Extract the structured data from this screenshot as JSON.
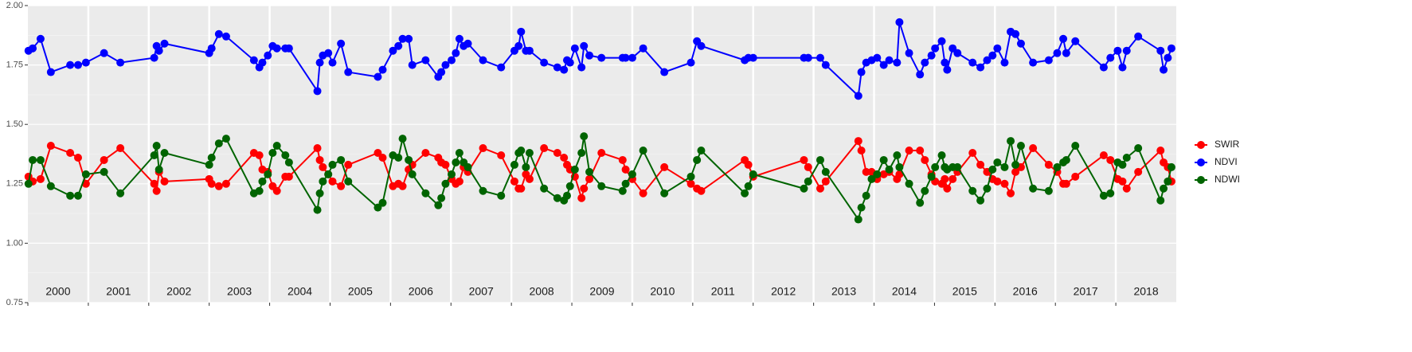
{
  "chart_data": {
    "type": "line",
    "x": [
      2000.01,
      2000.08,
      2000.21,
      2000.38,
      2000.7,
      2000.83,
      2000.96,
      2001.26,
      2001.53,
      2002.09,
      2002.13,
      2002.17,
      2002.26,
      2003.0,
      2003.04,
      2003.16,
      2003.28,
      2003.74,
      2003.83,
      2003.88,
      2003.97,
      2004.05,
      2004.12,
      2004.26,
      2004.32,
      2004.79,
      2004.83,
      2004.88,
      2004.97,
      2005.04,
      2005.18,
      2005.3,
      2005.79,
      2005.87,
      2006.04,
      2006.13,
      2006.2,
      2006.3,
      2006.36,
      2006.58,
      2006.79,
      2006.84,
      2006.91,
      2007.01,
      2007.08,
      2007.14,
      2007.21,
      2007.28,
      2007.53,
      2007.83,
      2008.05,
      2008.12,
      2008.16,
      2008.24,
      2008.3,
      2008.54,
      2008.76,
      2008.87,
      2008.92,
      2008.97,
      2009.05,
      2009.16,
      2009.2,
      2009.29,
      2009.49,
      2009.84,
      2009.89,
      2010.0,
      2010.18,
      2010.53,
      2010.97,
      2011.07,
      2011.14,
      2011.86,
      2011.92,
      2012.0,
      2012.84,
      2012.91,
      2013.11,
      2013.2,
      2013.74,
      2013.79,
      2013.87,
      2013.96,
      2014.05,
      2014.16,
      2014.25,
      2014.38,
      2014.42,
      2014.58,
      2014.76,
      2014.84,
      2014.95,
      2015.01,
      2015.12,
      2015.17,
      2015.21,
      2015.3,
      2015.38,
      2015.63,
      2015.76,
      2015.87,
      2015.96,
      2016.04,
      2016.16,
      2016.26,
      2016.34,
      2016.43,
      2016.63,
      2016.89,
      2017.03,
      2017.13,
      2017.18,
      2017.33,
      2017.8,
      2017.91,
      2018.03,
      2018.11,
      2018.18,
      2018.37,
      2018.74,
      2018.79,
      2018.86,
      2018.92
    ],
    "series": [
      {
        "name": "SWIR",
        "color": "#ff0000",
        "values": [
          1.28,
          1.26,
          1.27,
          1.41,
          1.38,
          1.36,
          1.25,
          1.35,
          1.4,
          1.25,
          1.22,
          1.3,
          1.26,
          1.27,
          1.25,
          1.24,
          1.25,
          1.38,
          1.37,
          1.31,
          1.3,
          1.24,
          1.22,
          1.28,
          1.28,
          1.4,
          1.35,
          1.32,
          1.29,
          1.26,
          1.24,
          1.33,
          1.38,
          1.36,
          1.24,
          1.25,
          1.24,
          1.31,
          1.33,
          1.38,
          1.36,
          1.34,
          1.33,
          1.27,
          1.25,
          1.26,
          1.32,
          1.3,
          1.4,
          1.37,
          1.26,
          1.23,
          1.23,
          1.29,
          1.27,
          1.4,
          1.38,
          1.36,
          1.33,
          1.31,
          1.28,
          1.19,
          1.23,
          1.27,
          1.38,
          1.35,
          1.31,
          1.27,
          1.21,
          1.32,
          1.25,
          1.23,
          1.22,
          1.35,
          1.33,
          1.28,
          1.35,
          1.32,
          1.23,
          1.26,
          1.43,
          1.39,
          1.3,
          1.3,
          1.27,
          1.29,
          1.3,
          1.27,
          1.29,
          1.39,
          1.39,
          1.35,
          1.29,
          1.26,
          1.25,
          1.27,
          1.23,
          1.27,
          1.3,
          1.38,
          1.33,
          1.3,
          1.27,
          1.26,
          1.25,
          1.21,
          1.3,
          1.32,
          1.4,
          1.33,
          1.3,
          1.25,
          1.25,
          1.28,
          1.37,
          1.35,
          1.27,
          1.26,
          1.23,
          1.3,
          1.39,
          1.34,
          1.32,
          1.26
        ]
      },
      {
        "name": "NDVI",
        "color": "#0000ff",
        "values": [
          1.81,
          1.82,
          1.86,
          1.72,
          1.75,
          1.75,
          1.76,
          1.8,
          1.76,
          1.78,
          1.83,
          1.81,
          1.84,
          1.8,
          1.82,
          1.88,
          1.87,
          1.77,
          1.74,
          1.76,
          1.79,
          1.83,
          1.82,
          1.82,
          1.82,
          1.64,
          1.76,
          1.79,
          1.8,
          1.76,
          1.84,
          1.72,
          1.7,
          1.73,
          1.81,
          1.83,
          1.86,
          1.86,
          1.75,
          1.77,
          1.7,
          1.72,
          1.75,
          1.77,
          1.8,
          1.86,
          1.83,
          1.84,
          1.77,
          1.74,
          1.81,
          1.83,
          1.89,
          1.81,
          1.81,
          1.76,
          1.74,
          1.73,
          1.77,
          1.76,
          1.82,
          1.74,
          1.83,
          1.79,
          1.78,
          1.78,
          1.78,
          1.78,
          1.82,
          1.72,
          1.76,
          1.85,
          1.83,
          1.77,
          1.78,
          1.78,
          1.78,
          1.78,
          1.78,
          1.75,
          1.62,
          1.72,
          1.76,
          1.77,
          1.78,
          1.75,
          1.77,
          1.76,
          1.93,
          1.8,
          1.71,
          1.76,
          1.79,
          1.82,
          1.85,
          1.76,
          1.73,
          1.82,
          1.8,
          1.76,
          1.74,
          1.77,
          1.79,
          1.82,
          1.76,
          1.89,
          1.88,
          1.84,
          1.76,
          1.77,
          1.8,
          1.86,
          1.8,
          1.85,
          1.74,
          1.78,
          1.81,
          1.74,
          1.81,
          1.87,
          1.81,
          1.73,
          1.78,
          1.82
        ]
      },
      {
        "name": "NDWI",
        "color": "#006400",
        "values": [
          1.25,
          1.35,
          1.35,
          1.24,
          1.2,
          1.2,
          1.29,
          1.3,
          1.21,
          1.37,
          1.41,
          1.31,
          1.38,
          1.33,
          1.36,
          1.42,
          1.44,
          1.21,
          1.22,
          1.26,
          1.29,
          1.38,
          1.41,
          1.37,
          1.34,
          1.14,
          1.21,
          1.26,
          1.29,
          1.33,
          1.35,
          1.26,
          1.15,
          1.17,
          1.37,
          1.36,
          1.44,
          1.35,
          1.29,
          1.21,
          1.16,
          1.19,
          1.25,
          1.29,
          1.34,
          1.38,
          1.34,
          1.32,
          1.22,
          1.2,
          1.33,
          1.38,
          1.39,
          1.32,
          1.38,
          1.23,
          1.19,
          1.18,
          1.2,
          1.24,
          1.31,
          1.38,
          1.45,
          1.3,
          1.24,
          1.22,
          1.25,
          1.29,
          1.39,
          1.21,
          1.28,
          1.35,
          1.39,
          1.21,
          1.24,
          1.29,
          1.23,
          1.26,
          1.35,
          1.3,
          1.1,
          1.15,
          1.2,
          1.27,
          1.29,
          1.35,
          1.31,
          1.37,
          1.32,
          1.25,
          1.17,
          1.22,
          1.28,
          1.32,
          1.37,
          1.32,
          1.31,
          1.32,
          1.32,
          1.22,
          1.18,
          1.23,
          1.31,
          1.34,
          1.32,
          1.43,
          1.33,
          1.41,
          1.23,
          1.22,
          1.32,
          1.34,
          1.35,
          1.41,
          1.2,
          1.21,
          1.34,
          1.33,
          1.36,
          1.4,
          1.18,
          1.23,
          1.26,
          1.32
        ]
      }
    ],
    "xlim": [
      2000,
      2019
    ],
    "xticks": [
      2000,
      2001,
      2002,
      2003,
      2004,
      2005,
      2006,
      2007,
      2008,
      2009,
      2010,
      2011,
      2012,
      2013,
      2014,
      2015,
      2016,
      2017,
      2018
    ],
    "ylim": [
      0.75,
      2
    ],
    "yticks": [
      {
        "value": 0.75,
        "label": "0.75"
      },
      {
        "value": 1,
        "label": "1.00"
      },
      {
        "value": 1.25,
        "label": "1.25"
      },
      {
        "value": 1.5,
        "label": "1.50"
      },
      {
        "value": 1.75,
        "label": "1.75"
      },
      {
        "value": 2,
        "label": "2.00"
      }
    ],
    "grid": true,
    "legend": "right"
  }
}
